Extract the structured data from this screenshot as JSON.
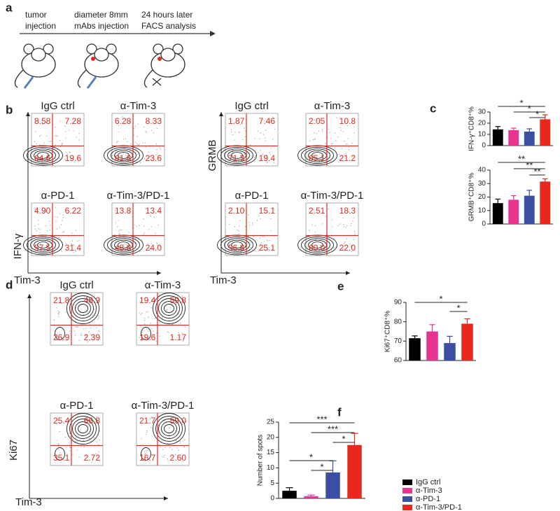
{
  "panel_labels": [
    "a",
    "b",
    "c",
    "d",
    "e",
    "f"
  ],
  "panel_a": {
    "steps": [
      {
        "line1": "tumor",
        "line2": "injection"
      },
      {
        "line1": "diameter 8mm",
        "line2": "mAbs injection"
      },
      {
        "line1": "24 hours later",
        "line2": "FACS analysis"
      }
    ]
  },
  "panel_b": {
    "ifng": {
      "y_label": "IFN-γ",
      "x_label": "Tim-3",
      "plots": [
        {
          "title": "IgG ctrl",
          "quadrants": [
            "8.58",
            "7.28",
            "64.6",
            "19.6"
          ]
        },
        {
          "title": "α-Tim-3",
          "quadrants": [
            "6.28",
            "8.33",
            "61.8",
            "23.6"
          ]
        },
        {
          "title": "α-PD-1",
          "quadrants": [
            "4.90",
            "6.22",
            "57.5",
            "31.4"
          ]
        },
        {
          "title": "α-Tim-3/PD-1",
          "quadrants": [
            "13.8",
            "13.4",
            "48.8",
            "24.0"
          ]
        }
      ]
    },
    "grmb": {
      "y_label": "GRMB",
      "x_label": "Tim-3",
      "plots": [
        {
          "title": "IgG ctrl",
          "quadrants": [
            "1.87",
            "7.46",
            "71.3",
            "19.4"
          ]
        },
        {
          "title": "α-Tim-3",
          "quadrants": [
            "2.05",
            "10.8",
            "65.1",
            "21.2"
          ]
        },
        {
          "title": "α-PD-1",
          "quadrants": [
            "2.10",
            "15.1",
            "56.8",
            "25.1"
          ]
        },
        {
          "title": "α-Tim-3/PD-1",
          "quadrants": [
            "2.51",
            "18.3",
            "60.0",
            "22.0"
          ]
        }
      ]
    }
  },
  "panel_d": {
    "y_label": "Ki67",
    "x_label": "Tim-3",
    "plots": [
      {
        "title": "IgG ctrl",
        "quadrants": [
          "21.8",
          "48.9",
          "26.9",
          "2.39"
        ]
      },
      {
        "title": "α-Tim-3",
        "quadrants": [
          "19.4",
          "59.8",
          "19.6",
          "1.17"
        ]
      },
      {
        "title": "α-PD-1",
        "quadrants": [
          "25.4",
          "66.8",
          "35.1",
          "2.72"
        ]
      },
      {
        "title": "α-Tim-3/PD-1",
        "quadrants": [
          "21.7",
          "59.0",
          "16.7",
          "2.60"
        ]
      }
    ]
  },
  "groups": [
    {
      "name": "IgG ctrl",
      "color": "#000000"
    },
    {
      "name": "α-Tim-3",
      "color": "#e8338f"
    },
    {
      "name": "α-PD-1",
      "color": "#3a4ea3"
    },
    {
      "name": "α-Tim-3/PD-1",
      "color": "#e8281e"
    }
  ],
  "chart_data": [
    {
      "type": "bar",
      "y_label": "IFN-γ⁺CD8⁺%",
      "ylim": [
        0,
        30
      ],
      "yticks": [
        0,
        10,
        20,
        30
      ],
      "values": [
        14.5,
        13.8,
        12.5,
        23.5
      ],
      "errors": [
        2.5,
        1.8,
        2.5,
        4
      ],
      "significance": [
        {
          "between": [
            0,
            3
          ],
          "label": "*"
        },
        {
          "between": [
            1,
            3
          ],
          "label": "*"
        },
        {
          "between": [
            2,
            3
          ],
          "label": "*"
        }
      ]
    },
    {
      "type": "bar",
      "y_label": "GRMB⁺CD8⁺%",
      "ylim": [
        0,
        40
      ],
      "yticks": [
        0,
        10,
        20,
        30,
        40
      ],
      "values": [
        15.5,
        18,
        21,
        31.5
      ],
      "errors": [
        3,
        3,
        4,
        2
      ],
      "significance": [
        {
          "between": [
            0,
            3
          ],
          "label": "**"
        },
        {
          "between": [
            1,
            3
          ],
          "label": "**"
        },
        {
          "between": [
            2,
            3
          ],
          "label": "**"
        }
      ]
    },
    {
      "type": "bar",
      "y_label": "Ki67⁺CD8⁺%",
      "ylim": [
        60,
        90
      ],
      "yticks": [
        60,
        70,
        80,
        90
      ],
      "values": [
        71.5,
        75,
        69,
        79
      ],
      "errors": [
        1.2,
        3.5,
        3.5,
        2.5
      ],
      "significance": [
        {
          "between": [
            0,
            3
          ],
          "label": "*"
        },
        {
          "between": [
            2,
            3
          ],
          "label": "*"
        }
      ]
    },
    {
      "type": "bar",
      "y_label": "Number of spots",
      "ylim": [
        0,
        25
      ],
      "yticks": [
        0,
        5,
        10,
        15,
        20,
        25
      ],
      "values": [
        2.5,
        0.7,
        8.5,
        17.5
      ],
      "errors": [
        1,
        0.4,
        3.8,
        3.8
      ],
      "legend": true,
      "significance": [
        {
          "between": [
            0,
            3
          ],
          "label": "***"
        },
        {
          "between": [
            1,
            3
          ],
          "label": "***"
        },
        {
          "between": [
            2,
            3
          ],
          "label": "*"
        },
        {
          "between": [
            0,
            2
          ],
          "label": "*"
        },
        {
          "between": [
            1,
            2
          ],
          "label": "*"
        }
      ]
    }
  ]
}
